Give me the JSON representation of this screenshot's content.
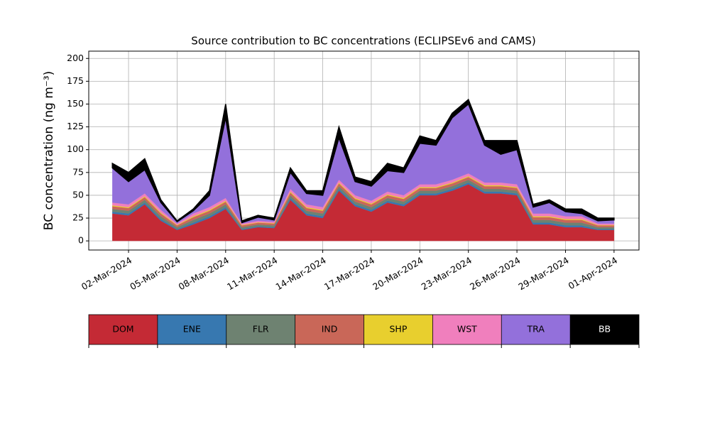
{
  "chart_data": {
    "type": "stacked_area",
    "title": "Source contribution to BC concentrations (ECLIPSEv6 and CAMS)",
    "y_label": "BC concentration (ng m⁻³)",
    "x": [
      "2024-03-01",
      "2024-03-02",
      "2024-03-03",
      "2024-03-04",
      "2024-03-05",
      "2024-03-06",
      "2024-03-07",
      "2024-03-08",
      "2024-03-09",
      "2024-03-10",
      "2024-03-11",
      "2024-03-12",
      "2024-03-13",
      "2024-03-14",
      "2024-03-15",
      "2024-03-16",
      "2024-03-17",
      "2024-03-18",
      "2024-03-19",
      "2024-03-20",
      "2024-03-21",
      "2024-03-22",
      "2024-03-23",
      "2024-03-24",
      "2024-03-25",
      "2024-03-26",
      "2024-03-27",
      "2024-03-28",
      "2024-03-29",
      "2024-03-30",
      "2024-03-31",
      "2024-04-01"
    ],
    "series": [
      {
        "name": "DOM",
        "color": "#c42a35",
        "values": [
          30,
          28,
          40,
          22,
          12,
          18,
          25,
          35,
          12,
          15,
          14,
          45,
          28,
          25,
          55,
          38,
          32,
          42,
          38,
          50,
          50,
          55,
          62,
          52,
          52,
          50,
          18,
          18,
          15,
          15,
          12,
          12
        ]
      },
      {
        "name": "ENE",
        "color": "#3778b0",
        "values": [
          2,
          2,
          2,
          2,
          1,
          2,
          2,
          2,
          1,
          1,
          1,
          2,
          2,
          2,
          2,
          2,
          2,
          2,
          2,
          2,
          2,
          2,
          2,
          2,
          2,
          2,
          2,
          2,
          2,
          2,
          1,
          1
        ]
      },
      {
        "name": "FLR",
        "color": "#6e8271",
        "values": [
          3,
          3,
          3,
          3,
          2,
          3,
          3,
          3,
          2,
          2,
          2,
          3,
          3,
          3,
          3,
          3,
          3,
          3,
          3,
          3,
          3,
          3,
          3,
          3,
          3,
          3,
          3,
          3,
          3,
          3,
          2,
          2
        ]
      },
      {
        "name": "IND",
        "color": "#c96758",
        "values": [
          3,
          3,
          3,
          3,
          2,
          3,
          3,
          3,
          2,
          2,
          2,
          3,
          3,
          3,
          3,
          3,
          3,
          3,
          3,
          3,
          3,
          3,
          3,
          3,
          3,
          3,
          3,
          3,
          3,
          3,
          2,
          2
        ]
      },
      {
        "name": "SHP",
        "color": "#e8cf2e",
        "values": [
          1,
          1,
          1,
          1,
          0.5,
          1,
          1,
          1,
          0.5,
          0.5,
          0.5,
          1,
          1,
          1,
          1,
          1,
          1,
          1,
          1,
          1,
          1,
          1,
          1,
          1,
          1,
          1,
          1,
          1,
          1,
          1,
          0.5,
          0.5
        ]
      },
      {
        "name": "WST",
        "color": "#f07fbd",
        "values": [
          3,
          3,
          3,
          3,
          1.5,
          3,
          3,
          3,
          1.5,
          1.5,
          1.5,
          3,
          3,
          3,
          3,
          3,
          3,
          3,
          3,
          3,
          3,
          3,
          3,
          3,
          3,
          3,
          3,
          3,
          3,
          3,
          1.5,
          1.5
        ]
      },
      {
        "name": "TRA",
        "color": "#9370db",
        "values": [
          38,
          25,
          26,
          8,
          2,
          3,
          13,
          88,
          1,
          4,
          2,
          18,
          12,
          13,
          46,
          15,
          16,
          23,
          25,
          45,
          43,
          68,
          76,
          41,
          31,
          38,
          7,
          12,
          5,
          3,
          3,
          4
        ]
      },
      {
        "name": "BB",
        "color": "#000000",
        "values": [
          5,
          10,
          12,
          3,
          1,
          2,
          5,
          15,
          2,
          2,
          2,
          5,
          3,
          5,
          12,
          5,
          5,
          8,
          5,
          8,
          5,
          5,
          5,
          5,
          15,
          10,
          3,
          3,
          3,
          5,
          3,
          2
        ]
      }
    ],
    "xlim": [
      "2024-02-28T13:00",
      "2024-04-02T13:00"
    ],
    "xticks": [
      {
        "value": "2024-03-02",
        "label": "02-Mar-2024"
      },
      {
        "value": "2024-03-05",
        "label": "05-Mar-2024"
      },
      {
        "value": "2024-03-08",
        "label": "08-Mar-2024"
      },
      {
        "value": "2024-03-11",
        "label": "11-Mar-2024"
      },
      {
        "value": "2024-03-14",
        "label": "14-Mar-2024"
      },
      {
        "value": "2024-03-17",
        "label": "17-Mar-2024"
      },
      {
        "value": "2024-03-20",
        "label": "20-Mar-2024"
      },
      {
        "value": "2024-03-23",
        "label": "23-Mar-2024"
      },
      {
        "value": "2024-03-26",
        "label": "26-Mar-2024"
      },
      {
        "value": "2024-03-29",
        "label": "29-Mar-2024"
      },
      {
        "value": "2024-04-01",
        "label": "01-Apr-2024"
      }
    ],
    "ylim": [
      -10,
      208
    ],
    "yticks": [
      0,
      25,
      50,
      75,
      100,
      125,
      150,
      175,
      200
    ],
    "grid": true
  }
}
